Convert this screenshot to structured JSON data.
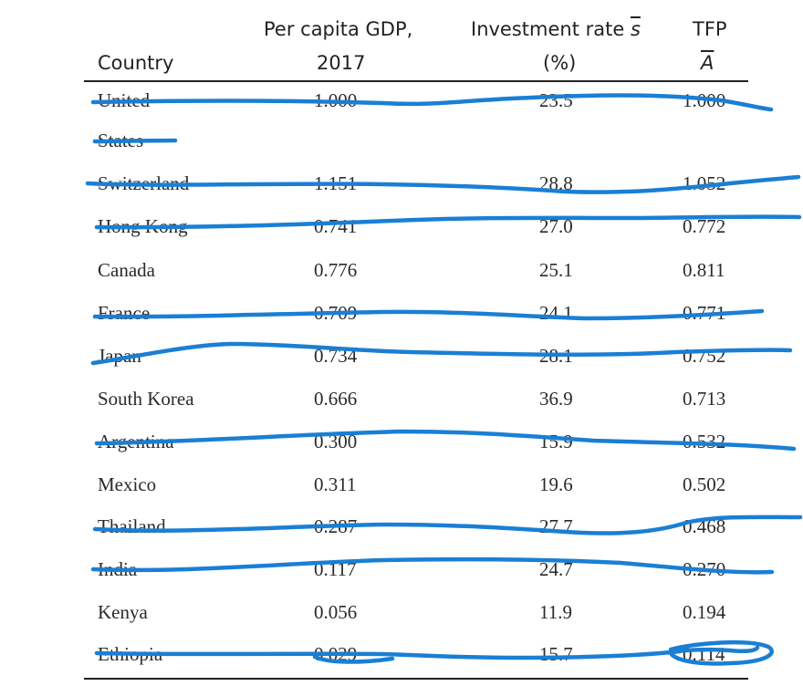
{
  "table": {
    "headers": {
      "country": "Country",
      "gdp_line1": "Per capita GDP,",
      "gdp_line2": "2017",
      "invest_line1_text": "Investment rate ",
      "invest_line1_symbol": "s",
      "invest_line2": "(%)",
      "tfp_line1": "TFP",
      "tfp_line2": "A"
    },
    "rows": [
      {
        "country": "United",
        "country_cont": "States",
        "gdp": "1.000",
        "invest": "23.5",
        "tfp": "1.000",
        "struck": true
      },
      {
        "country": "Switzerland",
        "gdp": "1.151",
        "invest": "28.8",
        "tfp": "1.052",
        "struck": true
      },
      {
        "country": "Hong Kong",
        "gdp": "0.741",
        "invest": "27.0",
        "tfp": "0.772",
        "struck": true
      },
      {
        "country": "Canada",
        "gdp": "0.776",
        "invest": "25.1",
        "tfp": "0.811",
        "struck": false
      },
      {
        "country": "France",
        "gdp": "0.709",
        "invest": "24.1",
        "tfp": "0.771",
        "struck": true
      },
      {
        "country": "Japan",
        "gdp": "0.734",
        "invest": "28.1",
        "tfp": "0.752",
        "struck": true
      },
      {
        "country": "South Korea",
        "gdp": "0.666",
        "invest": "36.9",
        "tfp": "0.713",
        "struck": false
      },
      {
        "country": "Argentina",
        "gdp": "0.300",
        "invest": "15.9",
        "tfp": "0.532",
        "struck": true
      },
      {
        "country": "Mexico",
        "gdp": "0.311",
        "invest": "19.6",
        "tfp": "0.502",
        "struck": false
      },
      {
        "country": "Thailand",
        "gdp": "0.287",
        "invest": "27.7",
        "tfp": "0.468",
        "struck": true
      },
      {
        "country": "India",
        "gdp": "0.117",
        "invest": "24.7",
        "tfp": "0.270",
        "struck": true
      },
      {
        "country": "Kenya",
        "gdp": "0.056",
        "invest": "11.9",
        "tfp": "0.194",
        "struck": false
      },
      {
        "country": "Ethiopia",
        "gdp": "0.029",
        "invest": "15.7",
        "tfp": "0.114",
        "struck": true
      }
    ]
  },
  "annotations": {
    "pen_color": "#1a7fd4",
    "style": "hand-drawn strikethrough lines over rows; circled final TFP value"
  }
}
